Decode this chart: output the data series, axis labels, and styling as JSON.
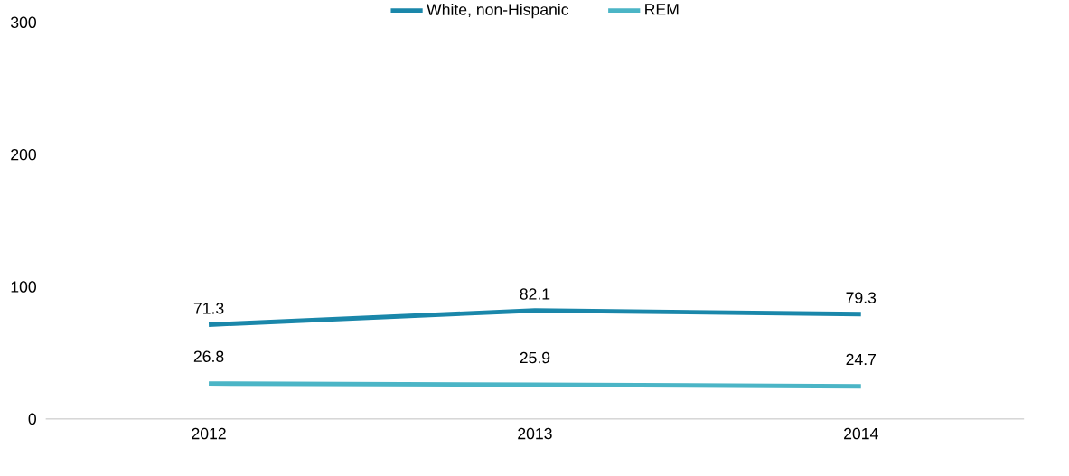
{
  "chart_data": {
    "type": "line",
    "categories": [
      "2012",
      "2013",
      "2014"
    ],
    "series": [
      {
        "name": "White, non-Hispanic",
        "color": "#1a87aa",
        "values": [
          71.3,
          82.1,
          79.3
        ]
      },
      {
        "name": "REM",
        "color": "#4bb5c6",
        "values": [
          26.8,
          25.9,
          24.7
        ]
      }
    ],
    "ylim": [
      0,
      300
    ],
    "yticks": [
      0,
      100,
      200,
      300
    ],
    "legend": "top",
    "grid": false,
    "data_labels": true,
    "marker": "none"
  }
}
